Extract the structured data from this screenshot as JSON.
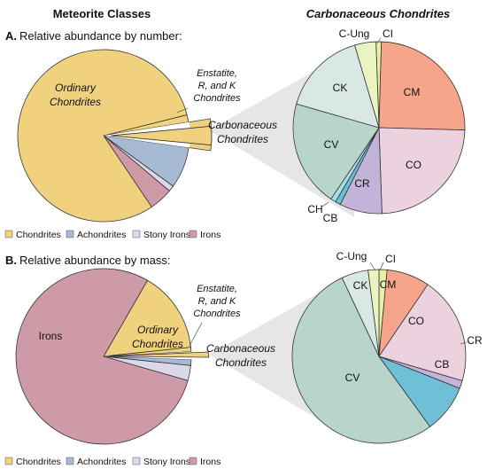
{
  "header": {
    "left_title": "Meteorite Classes",
    "right_title": "Carbonaceous Chondrites"
  },
  "colors": {
    "Chondrites": "#f0d27e",
    "Achondrites": "#a7bad3",
    "Stony Irons": "#dcd8ea",
    "Irons": "#cf9aa8",
    "CI": "#e8f0a8",
    "C-Ung": "#eaf4c2",
    "CM": "#f6a58a",
    "CO": "#ecd2de",
    "CR": "#c2b3d8",
    "CB": "#6fc0d7",
    "CH": "#a6e0e4",
    "CV": "#b7d5ca",
    "CK": "#d9e8e4",
    "carb_slice": "#f0d27e",
    "enst_slice": "#f0d27e",
    "funnel": "#e6e6e6",
    "stroke": "#333333"
  },
  "legend": [
    "Chondrites",
    "Achondrites",
    "Stony Irons",
    "Irons"
  ],
  "chart_data": [
    {
      "id": "A",
      "type": "pie",
      "title": "Relative abundance by number:",
      "panel_label": "A.",
      "main": {
        "slices": [
          {
            "label": "Ordinary Chondrites",
            "category": "Chondrites",
            "value": 80.5
          },
          {
            "label": "Achondrites",
            "category": "Achondrites",
            "value": 8.0
          },
          {
            "label": "Stony Irons",
            "category": "Stony Irons",
            "value": 1.0
          },
          {
            "label": "Irons",
            "category": "Irons",
            "value": 4.5
          },
          {
            "label": "Carbonaceous Chondrites",
            "category": "Chondrites",
            "value": 4.5,
            "exploded": true
          },
          {
            "label": "Enstatite, R, and K Chondrites",
            "category": "Chondrites",
            "value": 1.5
          }
        ],
        "labels": {
          "ordinary": [
            "Ordinary",
            "Chondrites"
          ],
          "enstatite": [
            "Enstatite,",
            "R, and K",
            "Chondrites"
          ],
          "carbonaceous": [
            "Carbonaceous",
            "Chondrites"
          ]
        }
      },
      "sub": {
        "title": "Carbonaceous Chondrites",
        "slices": [
          {
            "label": "CI",
            "value": 1
          },
          {
            "label": "CM",
            "value": 25
          },
          {
            "label": "CO",
            "value": 24
          },
          {
            "label": "CR",
            "value": 8
          },
          {
            "label": "CB",
            "value": 1
          },
          {
            "label": "CH",
            "value": 1
          },
          {
            "label": "CV",
            "value": 20
          },
          {
            "label": "CK",
            "value": 16
          },
          {
            "label": "C-Ung",
            "value": 4
          }
        ]
      }
    },
    {
      "id": "B",
      "type": "pie",
      "title": "Relative abundance by mass:",
      "panel_label": "B.",
      "main": {
        "slices": [
          {
            "label": "Irons",
            "category": "Irons",
            "value": 73.5
          },
          {
            "label": "Ordinary Chondrites",
            "category": "Chondrites",
            "value": 16.5
          },
          {
            "label": "Enstatite, R, and K Chondrites",
            "category": "Chondrites",
            "value": 1.0
          },
          {
            "label": "Carbonaceous Chondrites",
            "category": "Chondrites",
            "value": 1.5,
            "exploded": true
          },
          {
            "label": "Achondrites",
            "category": "Achondrites",
            "value": 1.5
          },
          {
            "label": "Stony Irons",
            "category": "Stony Irons",
            "value": 6.0
          }
        ],
        "labels": {
          "irons": "Irons",
          "ordinary": [
            "Ordinary",
            "Chondrites"
          ],
          "enstatite": [
            "Enstatite,",
            "R, and K",
            "Chondrites"
          ],
          "carbonaceous": [
            "Carbonaceous",
            "Chondrites"
          ]
        }
      },
      "sub": {
        "slices": [
          {
            "label": "CI",
            "value": 1.5
          },
          {
            "label": "CM",
            "value": 8
          },
          {
            "label": "CO",
            "value": 20
          },
          {
            "label": "CR",
            "value": 1.5
          },
          {
            "label": "CB",
            "value": 9
          },
          {
            "label": "CV",
            "value": 53
          },
          {
            "label": "CK",
            "value": 5
          },
          {
            "label": "C-Ung",
            "value": 2
          }
        ]
      }
    }
  ]
}
